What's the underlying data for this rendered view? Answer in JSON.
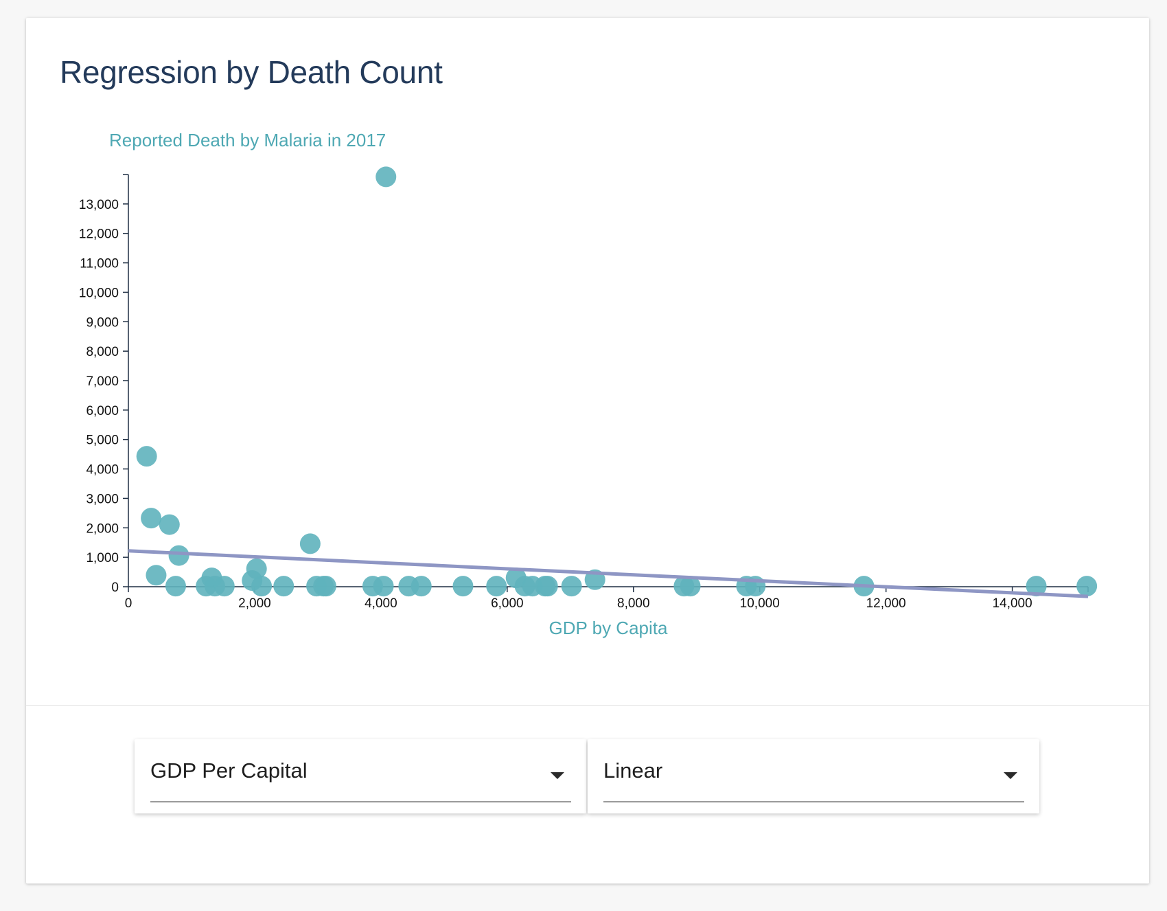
{
  "card": {
    "title": "Regression by Death Count"
  },
  "controls": {
    "variable_select": {
      "value": "GDP Per Capital"
    },
    "model_select": {
      "value": "Linear"
    }
  },
  "colors": {
    "point": "#5fb3bd",
    "regression_line": "#8e96c4",
    "axis_title": "#4ea8b3",
    "axis": "#1f2f44"
  },
  "chart_data": {
    "type": "scatter",
    "title": "",
    "xlabel": "GDP by Capita",
    "ylabel": "Reported Death by Malaria in 2017",
    "xlim": [
      0,
      15200
    ],
    "ylim": [
      0,
      14000
    ],
    "x_ticks": [
      0,
      2000,
      4000,
      6000,
      8000,
      10000,
      12000,
      14000
    ],
    "x_tick_labels": [
      "0",
      "2,000",
      "4,000",
      "6,000",
      "8,000",
      "10,000",
      "12,000",
      "14,000"
    ],
    "y_ticks": [
      0,
      1000,
      2000,
      3000,
      4000,
      5000,
      6000,
      7000,
      8000,
      9000,
      10000,
      11000,
      12000,
      13000
    ],
    "y_tick_labels": [
      "0",
      "1,000",
      "2,000",
      "3,000",
      "4,000",
      "5,000",
      "6,000",
      "7,000",
      "8,000",
      "9,000",
      "10,000",
      "11,000",
      "12,000",
      "13,000"
    ],
    "grid": false,
    "points": [
      {
        "x": 290,
        "y": 4430
      },
      {
        "x": 360,
        "y": 2330
      },
      {
        "x": 440,
        "y": 390
      },
      {
        "x": 650,
        "y": 2110
      },
      {
        "x": 800,
        "y": 1060
      },
      {
        "x": 750,
        "y": 20
      },
      {
        "x": 1230,
        "y": 20
      },
      {
        "x": 1320,
        "y": 300
      },
      {
        "x": 1370,
        "y": 20
      },
      {
        "x": 1520,
        "y": 20
      },
      {
        "x": 1960,
        "y": 210
      },
      {
        "x": 2030,
        "y": 610
      },
      {
        "x": 2110,
        "y": 20
      },
      {
        "x": 2460,
        "y": 20
      },
      {
        "x": 2880,
        "y": 1460
      },
      {
        "x": 2980,
        "y": 20
      },
      {
        "x": 3090,
        "y": 20
      },
      {
        "x": 3130,
        "y": 20
      },
      {
        "x": 3870,
        "y": 20
      },
      {
        "x": 4040,
        "y": 20
      },
      {
        "x": 4080,
        "y": 13920
      },
      {
        "x": 4440,
        "y": 20
      },
      {
        "x": 4640,
        "y": 20
      },
      {
        "x": 5300,
        "y": 20
      },
      {
        "x": 5830,
        "y": 20
      },
      {
        "x": 6140,
        "y": 300
      },
      {
        "x": 6280,
        "y": 20
      },
      {
        "x": 6400,
        "y": 20
      },
      {
        "x": 6600,
        "y": 20
      },
      {
        "x": 6640,
        "y": 20
      },
      {
        "x": 7020,
        "y": 20
      },
      {
        "x": 7390,
        "y": 240
      },
      {
        "x": 8800,
        "y": 20
      },
      {
        "x": 8900,
        "y": 20
      },
      {
        "x": 9790,
        "y": 20
      },
      {
        "x": 9930,
        "y": 20
      },
      {
        "x": 11650,
        "y": 20
      },
      {
        "x": 14380,
        "y": 20
      },
      {
        "x": 15180,
        "y": 20
      }
    ],
    "regression_line": {
      "x": [
        0,
        15200
      ],
      "y": [
        1220,
        -330
      ]
    }
  }
}
